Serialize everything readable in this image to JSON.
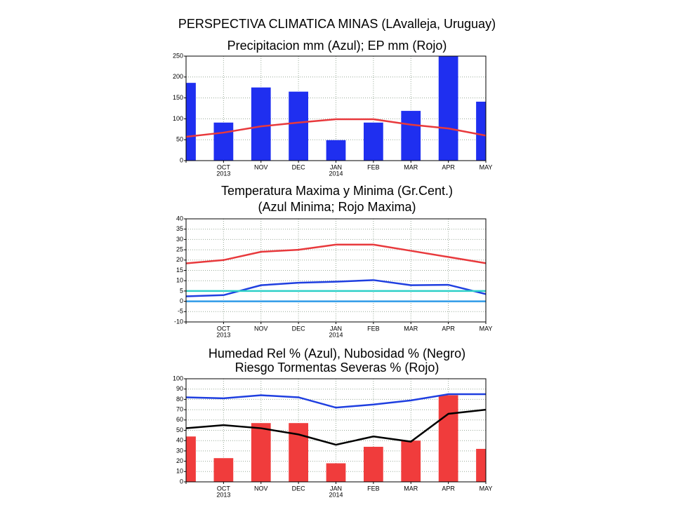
{
  "title": "PERSPECTIVA CLIMATICA MINAS (LAvalleja, Uruguay)",
  "chart_data": [
    {
      "type": "bar",
      "title": "Precipitacion mm (Azul); EP mm (Rojo)",
      "categories": [
        null,
        "OCT",
        "NOV",
        "DEC",
        "JAN",
        "FEB",
        "MAR",
        "APR",
        "MAY"
      ],
      "year_labels": [
        null,
        "2013",
        null,
        null,
        "2014",
        null,
        null,
        null,
        null
      ],
      "ylim": [
        0,
        250
      ],
      "yticks": [
        0,
        50,
        100,
        150,
        200,
        250
      ],
      "grid": true,
      "series": [
        {
          "type": "bar",
          "color": "#1f2ff0",
          "values": [
            186,
            91,
            175,
            165,
            49,
            91,
            119,
            250,
            141
          ]
        },
        {
          "type": "line",
          "color": "#e8393c",
          "values": [
            57,
            67,
            82,
            91,
            99,
            99,
            86,
            77,
            60
          ]
        }
      ]
    },
    {
      "type": "line",
      "title": "Temperatura Maxima y Minima (Gr.Cent.)",
      "subtitle": "(Azul Minima; Rojo Maxima)",
      "categories": [
        null,
        "OCT",
        "NOV",
        "DEC",
        "JAN",
        "FEB",
        "MAR",
        "APR",
        "MAY"
      ],
      "year_labels": [
        null,
        "2013",
        null,
        null,
        "2014",
        null,
        null,
        null,
        null
      ],
      "ylim": [
        -10,
        40
      ],
      "yticks": [
        -10,
        -5,
        0,
        5,
        10,
        15,
        20,
        25,
        30,
        35,
        40
      ],
      "grid": true,
      "series": [
        {
          "type": "line",
          "color": "#e8393c",
          "values": [
            18.4,
            20,
            24,
            25,
            27.5,
            27.5,
            24.5,
            21.5,
            18.5
          ]
        },
        {
          "type": "line",
          "color": "#1f3fe0",
          "values": [
            2.4,
            3,
            7.8,
            9,
            9.5,
            10.3,
            7.8,
            8,
            3.5
          ]
        },
        {
          "type": "line",
          "color": "#2fd0c8",
          "values": [
            5,
            5,
            5,
            5,
            5,
            5,
            5,
            5,
            5
          ]
        },
        {
          "type": "line",
          "color": "#2f9be8",
          "values": [
            0,
            0,
            0,
            0,
            0,
            0,
            0,
            0,
            0
          ]
        }
      ]
    },
    {
      "type": "bar",
      "title": "Humedad Rel % (Azul), Nubosidad % (Negro)",
      "subtitle": "Riesgo Tormentas Severas % (Rojo)",
      "categories": [
        null,
        "OCT",
        "NOV",
        "DEC",
        "JAN",
        "FEB",
        "MAR",
        "APR",
        "MAY"
      ],
      "year_labels": [
        null,
        "2013",
        null,
        null,
        "2014",
        null,
        null,
        null,
        null
      ],
      "ylim": [
        0,
        100
      ],
      "yticks": [
        0,
        10,
        20,
        30,
        40,
        50,
        60,
        70,
        80,
        90,
        100
      ],
      "grid": true,
      "series": [
        {
          "type": "bar",
          "color": "#f03c3c",
          "values": [
            44,
            23,
            57,
            57,
            18,
            34,
            40,
            84,
            32
          ]
        },
        {
          "type": "line",
          "color": "#1f3fe0",
          "values": [
            82,
            81,
            84,
            82,
            72,
            75,
            79,
            85,
            85
          ]
        },
        {
          "type": "line",
          "color": "#000000",
          "values": [
            52,
            55,
            52,
            46,
            36,
            44,
            39,
            66,
            70
          ]
        }
      ]
    }
  ]
}
